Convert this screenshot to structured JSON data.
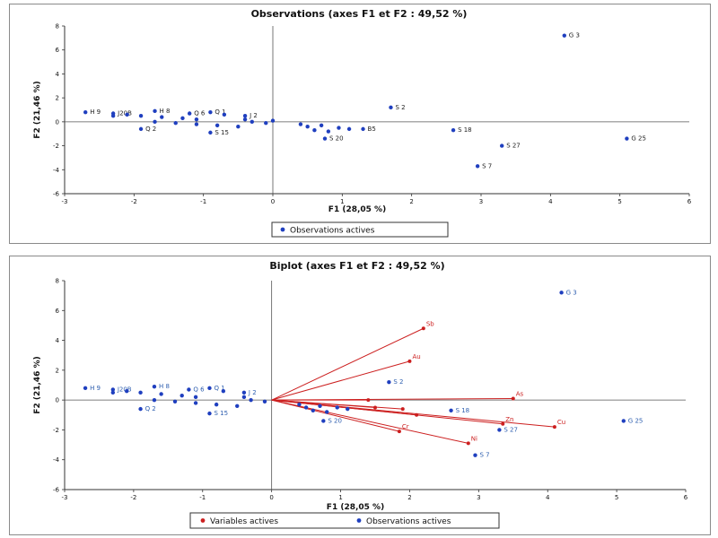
{
  "chart_data": [
    {
      "type": "scatter",
      "title": "Observations (axes F1 et F2 : 49,52 %)",
      "xlabel": "F1 (28,05 %)",
      "ylabel": "F2 (21,46 %)",
      "xlim": [
        -3,
        6
      ],
      "ylim": [
        -6,
        8
      ],
      "xticks": [
        "-3",
        "-2",
        "-1",
        "0",
        "1",
        "2",
        "3",
        "4",
        "5",
        "6"
      ],
      "yticks": [
        "-6",
        "-4",
        "-2",
        "0",
        "2",
        "4",
        "6",
        "8"
      ],
      "legend": {
        "placement": "bottom",
        "entries": [
          "Observations actives"
        ]
      },
      "colors": {
        "points": "#1f3fbf",
        "axes": "#555555"
      },
      "series": [
        {
          "name": "Observations actives",
          "points": [
            {
              "label": "G 3",
              "x": 4.2,
              "y": 7.2
            },
            {
              "label": "S 2",
              "x": 1.7,
              "y": 1.2
            },
            {
              "label": "S 18",
              "x": 2.6,
              "y": -0.7
            },
            {
              "label": "S 27",
              "x": 3.3,
              "y": -2.0
            },
            {
              "label": "S 7",
              "x": 2.95,
              "y": -3.7
            },
            {
              "label": "G 25",
              "x": 5.1,
              "y": -1.4
            },
            {
              "label": "S 20",
              "x": 0.75,
              "y": -1.4
            },
            {
              "label": "B5",
              "x": 1.3,
              "y": -0.6
            },
            {
              "label": "H 9",
              "x": -2.7,
              "y": 0.8
            },
            {
              "label": "J20B",
              "x": -2.3,
              "y": 0.7
            },
            {
              "label": "H 8",
              "x": -1.7,
              "y": 0.9
            },
            {
              "label": "Q 6",
              "x": -1.2,
              "y": 0.7
            },
            {
              "label": "Q 1",
              "x": -0.9,
              "y": 0.8
            },
            {
              "label": "J 2",
              "x": -0.4,
              "y": 0.5
            },
            {
              "label": "Q 2",
              "x": -1.9,
              "y": -0.6
            },
            {
              "label": "S 15",
              "x": -0.9,
              "y": -0.9
            },
            {
              "label": "",
              "x": -2.3,
              "y": 0.5
            },
            {
              "label": "",
              "x": -2.1,
              "y": 0.6
            },
            {
              "label": "",
              "x": -1.9,
              "y": 0.5
            },
            {
              "label": "",
              "x": -1.6,
              "y": 0.4
            },
            {
              "label": "",
              "x": -1.3,
              "y": 0.3
            },
            {
              "label": "",
              "x": -1.1,
              "y": 0.2
            },
            {
              "label": "",
              "x": -0.7,
              "y": 0.6
            },
            {
              "label": "",
              "x": -0.4,
              "y": 0.2
            },
            {
              "label": "",
              "x": -1.7,
              "y": 0.0
            },
            {
              "label": "",
              "x": -1.4,
              "y": -0.1
            },
            {
              "label": "",
              "x": -1.1,
              "y": -0.2
            },
            {
              "label": "",
              "x": -0.8,
              "y": -0.3
            },
            {
              "label": "",
              "x": -0.5,
              "y": -0.4
            },
            {
              "label": "",
              "x": -0.3,
              "y": 0.0
            },
            {
              "label": "",
              "x": -0.1,
              "y": -0.1
            },
            {
              "label": "",
              "x": 0.0,
              "y": 0.1
            },
            {
              "label": "",
              "x": 0.4,
              "y": -0.2
            },
            {
              "label": "",
              "x": 0.5,
              "y": -0.4
            },
            {
              "label": "",
              "x": 0.6,
              "y": -0.7
            },
            {
              "label": "",
              "x": 0.7,
              "y": -0.3
            },
            {
              "label": "",
              "x": 0.8,
              "y": -0.8
            },
            {
              "label": "",
              "x": 0.95,
              "y": -0.5
            },
            {
              "label": "",
              "x": 1.1,
              "y": -0.6
            }
          ]
        }
      ]
    },
    {
      "type": "scatter",
      "title": "Biplot (axes F1 et F2 : 49,52 %)",
      "xlabel": "F1 (28,05 %)",
      "ylabel": "F2 (21,46 %)",
      "xlim": [
        -3,
        6
      ],
      "ylim": [
        -6,
        8
      ],
      "xticks": [
        "-3",
        "-2",
        "-1",
        "0",
        "1",
        "2",
        "3",
        "4",
        "5",
        "6"
      ],
      "yticks": [
        "-6",
        "-4",
        "-2",
        "0",
        "2",
        "4",
        "6",
        "8"
      ],
      "legend": {
        "placement": "bottom",
        "entries": [
          "Variables actives",
          "Observations actives"
        ]
      },
      "colors": {
        "points": "#1f3fbf",
        "vectors": "#cc1f1f",
        "axes": "#555555"
      },
      "observations": [
        {
          "label": "G 3",
          "x": 4.2,
          "y": 7.2
        },
        {
          "label": "S 2",
          "x": 1.7,
          "y": 1.2
        },
        {
          "label": "S 18",
          "x": 2.6,
          "y": -0.7
        },
        {
          "label": "S 27",
          "x": 3.3,
          "y": -2.0
        },
        {
          "label": "S 7",
          "x": 2.95,
          "y": -3.7
        },
        {
          "label": "G 25",
          "x": 5.1,
          "y": -1.4
        },
        {
          "label": "S 20",
          "x": 0.75,
          "y": -1.4
        },
        {
          "label": "H 9",
          "x": -2.7,
          "y": 0.8
        },
        {
          "label": "J20B",
          "x": -2.3,
          "y": 0.7
        },
        {
          "label": "H 8",
          "x": -1.7,
          "y": 0.9
        },
        {
          "label": "Q 6",
          "x": -1.2,
          "y": 0.7
        },
        {
          "label": "Q 1",
          "x": -0.9,
          "y": 0.8
        },
        {
          "label": "J 2",
          "x": -0.4,
          "y": 0.5
        },
        {
          "label": "Q 2",
          "x": -1.9,
          "y": -0.6
        },
        {
          "label": "S 15",
          "x": -0.9,
          "y": -0.9
        },
        {
          "label": "",
          "x": -2.3,
          "y": 0.5
        },
        {
          "label": "",
          "x": -2.1,
          "y": 0.6
        },
        {
          "label": "",
          "x": -1.9,
          "y": 0.5
        },
        {
          "label": "",
          "x": -1.6,
          "y": 0.4
        },
        {
          "label": "",
          "x": -1.3,
          "y": 0.3
        },
        {
          "label": "",
          "x": -1.1,
          "y": 0.2
        },
        {
          "label": "",
          "x": -0.7,
          "y": 0.6
        },
        {
          "label": "",
          "x": -0.4,
          "y": 0.2
        },
        {
          "label": "",
          "x": -1.7,
          "y": 0.0
        },
        {
          "label": "",
          "x": -1.4,
          "y": -0.1
        },
        {
          "label": "",
          "x": -1.1,
          "y": -0.2
        },
        {
          "label": "",
          "x": -0.8,
          "y": -0.3
        },
        {
          "label": "",
          "x": -0.5,
          "y": -0.4
        },
        {
          "label": "",
          "x": -0.3,
          "y": 0.0
        },
        {
          "label": "",
          "x": -0.1,
          "y": -0.1
        },
        {
          "label": "",
          "x": 0.4,
          "y": -0.3
        },
        {
          "label": "",
          "x": 0.5,
          "y": -0.5
        },
        {
          "label": "",
          "x": 0.6,
          "y": -0.7
        },
        {
          "label": "",
          "x": 0.7,
          "y": -0.4
        },
        {
          "label": "",
          "x": 0.8,
          "y": -0.8
        },
        {
          "label": "",
          "x": 0.95,
          "y": -0.5
        },
        {
          "label": "",
          "x": 1.1,
          "y": -0.6
        }
      ],
      "variables": [
        {
          "label": "Sb",
          "x": 2.2,
          "y": 4.8
        },
        {
          "label": "Au",
          "x": 2.0,
          "y": 2.6
        },
        {
          "label": "As",
          "x": 3.5,
          "y": 0.1
        },
        {
          "label": "Cu",
          "x": 4.1,
          "y": -1.8
        },
        {
          "label": "Zn",
          "x": 3.35,
          "y": -1.6
        },
        {
          "label": "Ni",
          "x": 2.85,
          "y": -2.9
        },
        {
          "label": "Cr",
          "x": 1.85,
          "y": -2.1
        },
        {
          "label": "",
          "x": 1.4,
          "y": 0.0
        },
        {
          "label": "",
          "x": 1.9,
          "y": -0.6
        },
        {
          "label": "",
          "x": 2.1,
          "y": -1.0
        },
        {
          "label": "",
          "x": 1.5,
          "y": -0.5
        }
      ]
    }
  ]
}
